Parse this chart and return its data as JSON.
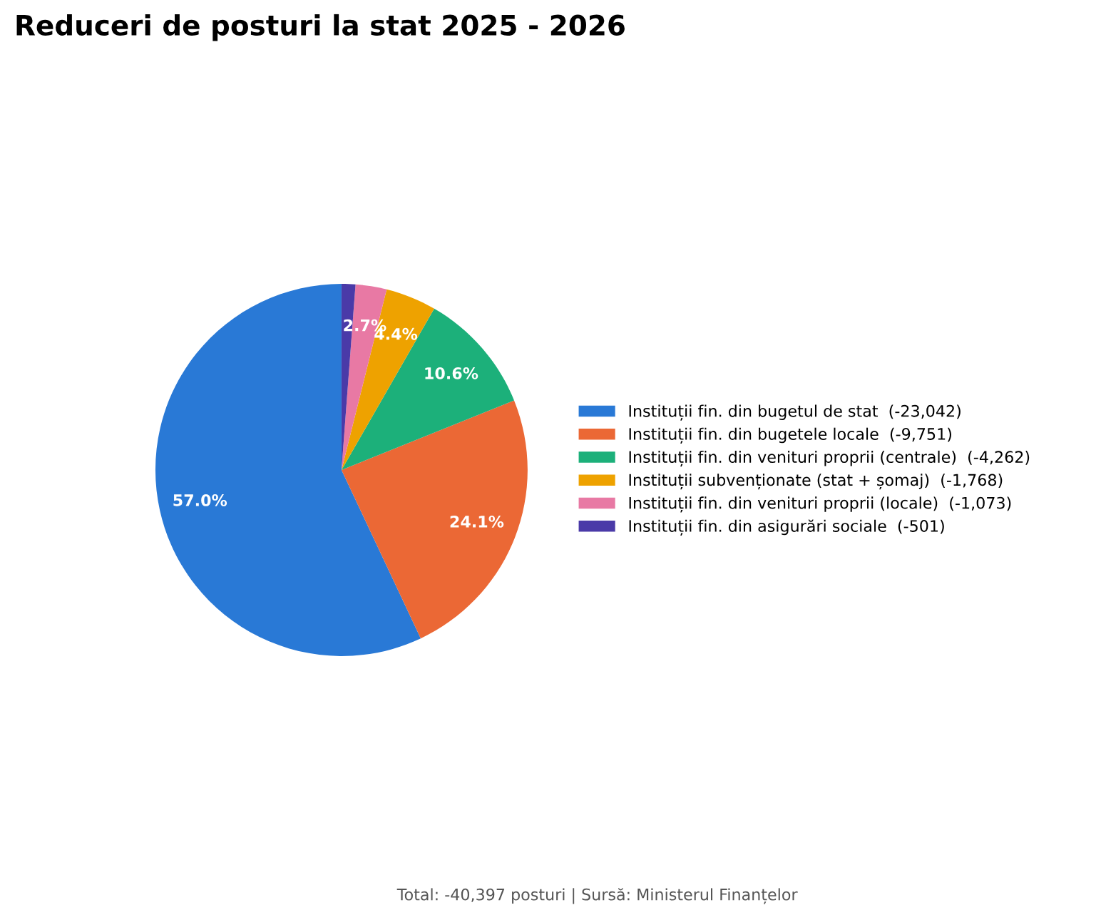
{
  "chart_data": {
    "type": "pie",
    "title": "Reduceri de posturi la stat 2025 - 2026",
    "categories": [
      "Instituții fin. din bugetul de stat  (-23,042)",
      "Instituții fin. din bugetele locale  (-9,751)",
      "Instituții fin. din venituri proprii (centrale)  (-4,262)",
      "Instituții subvenționate (stat + șomaj)  (-1,768)",
      "Instituții fin. din venituri proprii (locale)  (-1,073)",
      "Instituții fin. din asigurări sociale  (-501)"
    ],
    "values": [
      57.0,
      24.1,
      10.6,
      4.4,
      2.7,
      1.2
    ],
    "value_labels": [
      "57.0%",
      "24.1%",
      "10.6%",
      "4.4%",
      "2.7%",
      null
    ],
    "colors": [
      "#2979d6",
      "#eb6835",
      "#1cb07a",
      "#eea200",
      "#e879a4",
      "#4a3aa8"
    ],
    "legend": "right",
    "annotations": [
      "Total: -40,397 posturi | Sursă: Ministerul Finanțelor"
    ]
  }
}
